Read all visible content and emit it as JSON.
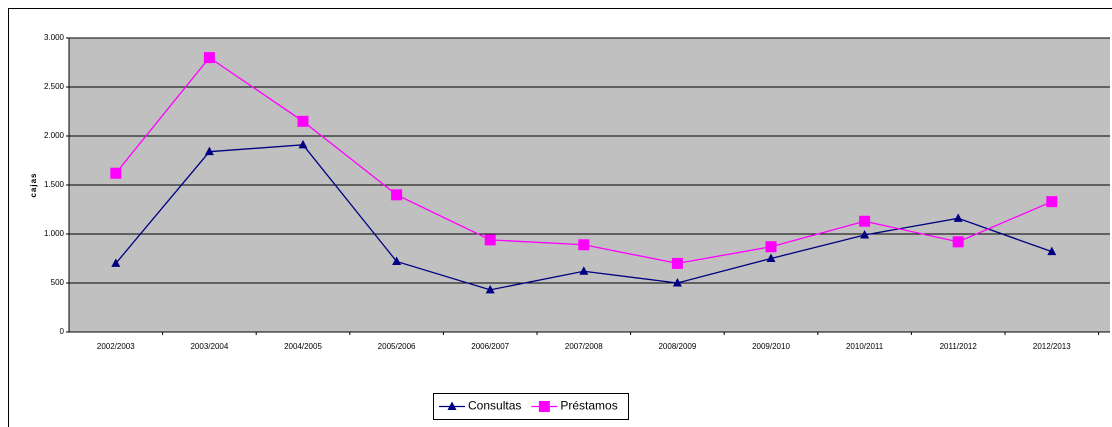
{
  "chart_data": {
    "type": "line",
    "y_label": "cajas",
    "categories": [
      "2002/2003",
      "2003/2004",
      "2004/2005",
      "2005/2006",
      "2006/2007",
      "2007/2008",
      "2008/2009",
      "2009/2010",
      "2010/2011",
      "2011/2012",
      "2012/2013"
    ],
    "series": [
      {
        "name": "Consultas",
        "color": "#000080",
        "marker": "triangle",
        "values": [
          700,
          1840,
          1910,
          720,
          430,
          620,
          500,
          750,
          990,
          1160,
          820
        ]
      },
      {
        "name": "Préstamos",
        "color": "#ff00ff",
        "marker": "square",
        "values": [
          1620,
          2800,
          2150,
          1400,
          940,
          890,
          700,
          870,
          1130,
          920,
          1330
        ]
      }
    ],
    "ylim": [
      0,
      3000
    ],
    "yticks": [
      0,
      500,
      {
        "value": 1000,
        "label": "1.000"
      },
      {
        "value": 1500,
        "label": "1.500"
      },
      {
        "value": 2000,
        "label": "2.000"
      },
      {
        "value": 2500,
        "label": "2.500"
      },
      {
        "value": 3000,
        "label": "3.000"
      }
    ],
    "grid": true,
    "plot_background": "#c0c0c0",
    "legend": "bottom"
  }
}
